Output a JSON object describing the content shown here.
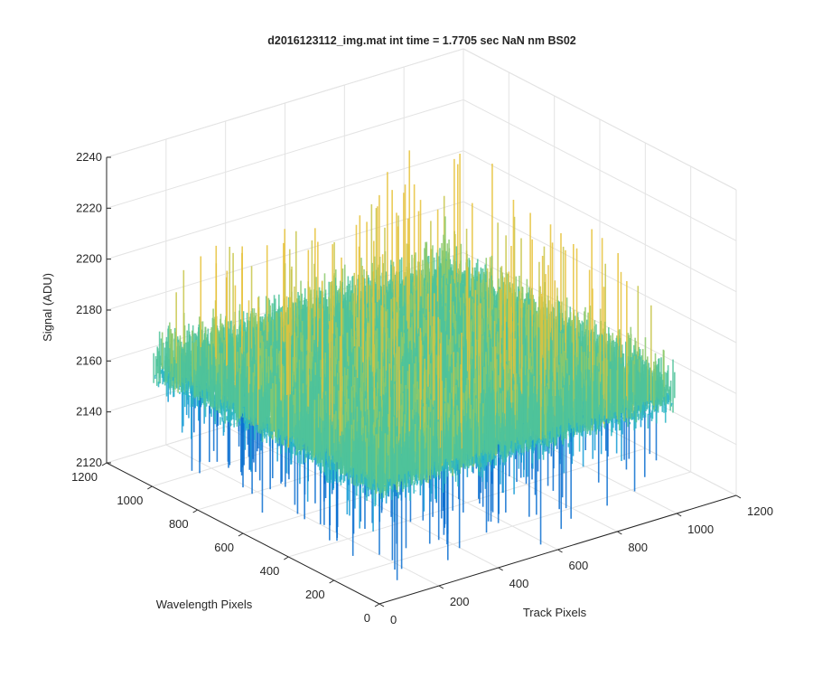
{
  "chart_data": {
    "type": "surface3d",
    "title": "d2016123112_img.mat int time = 1.7705 sec  NaN nm BS02",
    "xlabel": "Track Pixels",
    "ylabel": "Wavelength Pixels",
    "zlabel": "Signal (ADU)",
    "xlim": [
      0,
      1200
    ],
    "ylim": [
      0,
      1200
    ],
    "zlim": [
      2120,
      2240
    ],
    "x_ticks": [
      0,
      200,
      400,
      600,
      800,
      1000,
      1200
    ],
    "x_tick_labels": [
      "0",
      "200",
      "400",
      "600",
      "800",
      "1000",
      "1200"
    ],
    "y_ticks": [
      0,
      200,
      400,
      600,
      800,
      1000,
      1200
    ],
    "y_tick_labels": [
      "0",
      "200",
      "400",
      "600",
      "800",
      "1000",
      "1200"
    ],
    "z_ticks": [
      2120,
      2140,
      2160,
      2180,
      2200,
      2220,
      2240
    ],
    "z_tick_labels": [
      "2120",
      "2140",
      "2160",
      "2180",
      "2200",
      "2220",
      "2240"
    ],
    "surface": {
      "mean": 2170,
      "noise_range": [
        2128,
        2236
      ],
      "colormap": [
        "#0b6fd0",
        "#149bd6",
        "#2ab5c4",
        "#4fc39a",
        "#8cc96b",
        "#c8c64a",
        "#e6c23a"
      ]
    },
    "grid": true,
    "box": true
  }
}
